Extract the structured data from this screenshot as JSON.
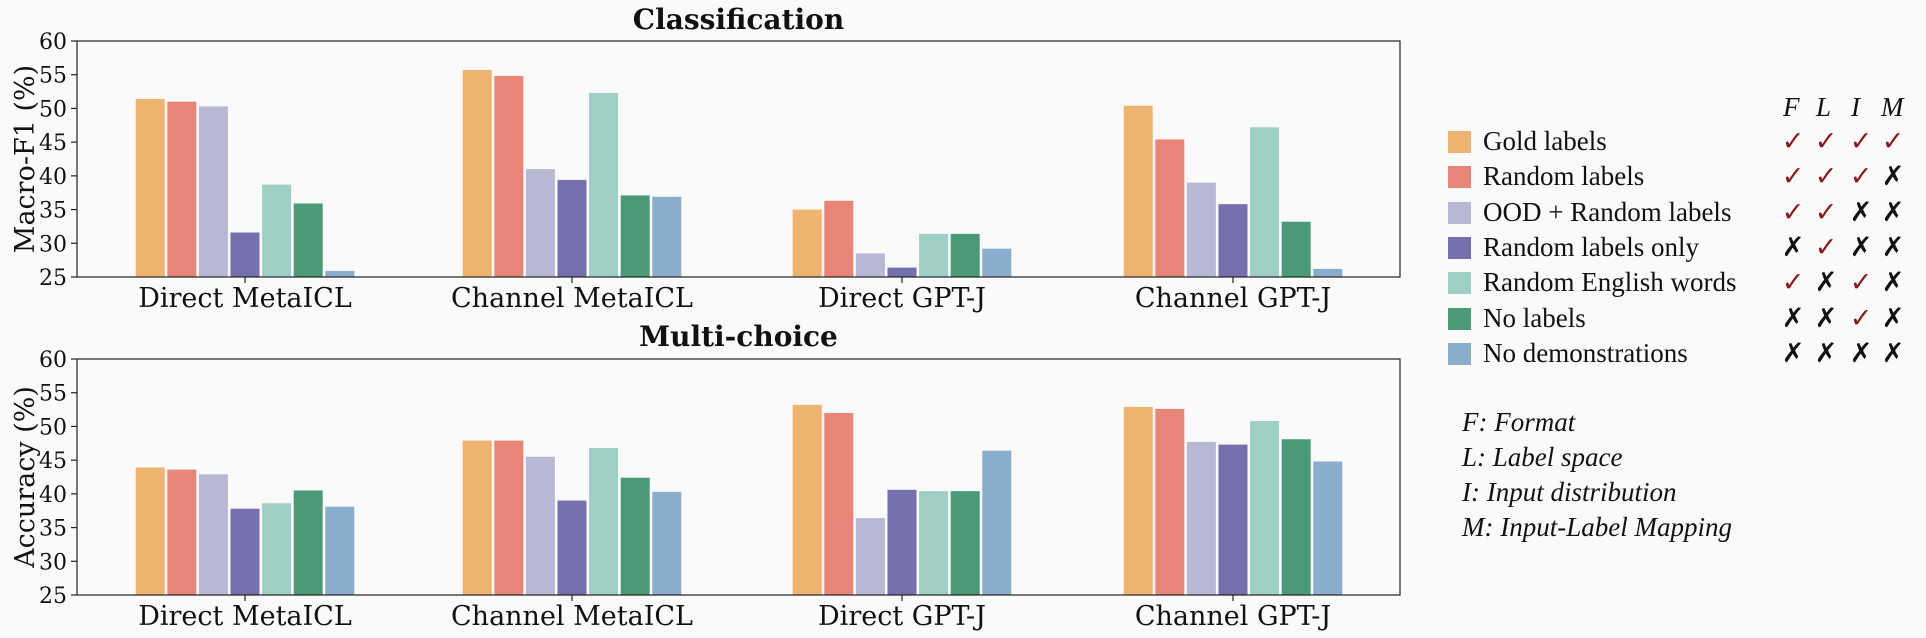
{
  "chart_data": [
    {
      "type": "bar",
      "title": "Classification",
      "ylabel": "Macro-F1 (%)",
      "ylim": [
        25,
        60
      ],
      "yticks": [
        "25",
        "30",
        "35",
        "40",
        "45",
        "50",
        "55",
        "60"
      ],
      "categories": [
        "Direct MetaICL",
        "Channel MetaICL",
        "Direct GPT-J",
        "Channel GPT-J"
      ],
      "series": [
        {
          "name": "Gold labels",
          "color": "#eeb36e",
          "values": [
            51.4,
            55.7,
            35.0,
            50.4
          ]
        },
        {
          "name": "Random labels",
          "color": "#e88576",
          "values": [
            51.0,
            54.8,
            36.3,
            45.4
          ]
        },
        {
          "name": "OOD + Random labels",
          "color": "#b9b7d6",
          "values": [
            50.3,
            41.0,
            28.5,
            39.0
          ]
        },
        {
          "name": "Random labels only",
          "color": "#7570ad",
          "values": [
            31.6,
            39.4,
            26.4,
            35.8
          ]
        },
        {
          "name": "Random English words",
          "color": "#9dcfc5",
          "values": [
            38.7,
            52.3,
            31.4,
            47.2
          ]
        },
        {
          "name": "No labels",
          "color": "#4a9a78",
          "values": [
            35.9,
            37.1,
            31.4,
            33.2
          ]
        },
        {
          "name": "No demonstrations",
          "color": "#88adcd",
          "values": [
            25.9,
            36.9,
            29.2,
            26.2
          ]
        }
      ]
    },
    {
      "type": "bar",
      "title": "Multi-choice",
      "ylabel": "Accuracy (%)",
      "ylim": [
        25,
        60
      ],
      "yticks": [
        "25",
        "30",
        "35",
        "40",
        "45",
        "50",
        "55",
        "60"
      ],
      "categories": [
        "Direct MetaICL",
        "Channel MetaICL",
        "Direct GPT-J",
        "Channel GPT-J"
      ],
      "series": [
        {
          "name": "Gold labels",
          "color": "#eeb36e",
          "values": [
            43.9,
            47.9,
            53.2,
            52.9
          ]
        },
        {
          "name": "Random labels",
          "color": "#e88576",
          "values": [
            43.6,
            47.9,
            52.0,
            52.6
          ]
        },
        {
          "name": "OOD + Random labels",
          "color": "#b9b7d6",
          "values": [
            42.9,
            45.5,
            36.4,
            47.7
          ]
        },
        {
          "name": "Random labels only",
          "color": "#7570ad",
          "values": [
            37.8,
            39.0,
            40.6,
            47.3
          ]
        },
        {
          "name": "Random English words",
          "color": "#9dcfc5",
          "values": [
            38.6,
            46.8,
            40.4,
            50.8
          ]
        },
        {
          "name": "No labels",
          "color": "#4a9a78",
          "values": [
            40.5,
            42.4,
            40.4,
            48.1
          ]
        },
        {
          "name": "No demonstrations",
          "color": "#88adcd",
          "values": [
            38.1,
            40.3,
            46.4,
            44.8
          ]
        }
      ]
    }
  ],
  "legend": {
    "header": [
      "F",
      "L",
      "I",
      "M"
    ],
    "marks": {
      "yes": "✓",
      "no": "✗"
    },
    "rows": [
      {
        "label": "Gold labels",
        "color": "#eeb36e",
        "flags": [
          "yes",
          "yes",
          "yes",
          "yes"
        ]
      },
      {
        "label": "Random labels",
        "color": "#e88576",
        "flags": [
          "yes",
          "yes",
          "yes",
          "no"
        ]
      },
      {
        "label": "OOD + Random labels",
        "color": "#b9b7d6",
        "flags": [
          "yes",
          "yes",
          "no",
          "no"
        ]
      },
      {
        "label": "Random labels only",
        "color": "#7570ad",
        "flags": [
          "no",
          "yes",
          "no",
          "no"
        ]
      },
      {
        "label": "Random English words",
        "color": "#9dcfc5",
        "flags": [
          "yes",
          "no",
          "yes",
          "no"
        ]
      },
      {
        "label": "No labels",
        "color": "#4a9a78",
        "flags": [
          "no",
          "no",
          "yes",
          "no"
        ]
      },
      {
        "label": "No demonstrations",
        "color": "#88adcd",
        "flags": [
          "no",
          "no",
          "no",
          "no"
        ]
      }
    ]
  },
  "definitions": [
    "F: Format",
    "L: Label space",
    "I: Input distribution",
    "M: Input-Label Mapping"
  ]
}
